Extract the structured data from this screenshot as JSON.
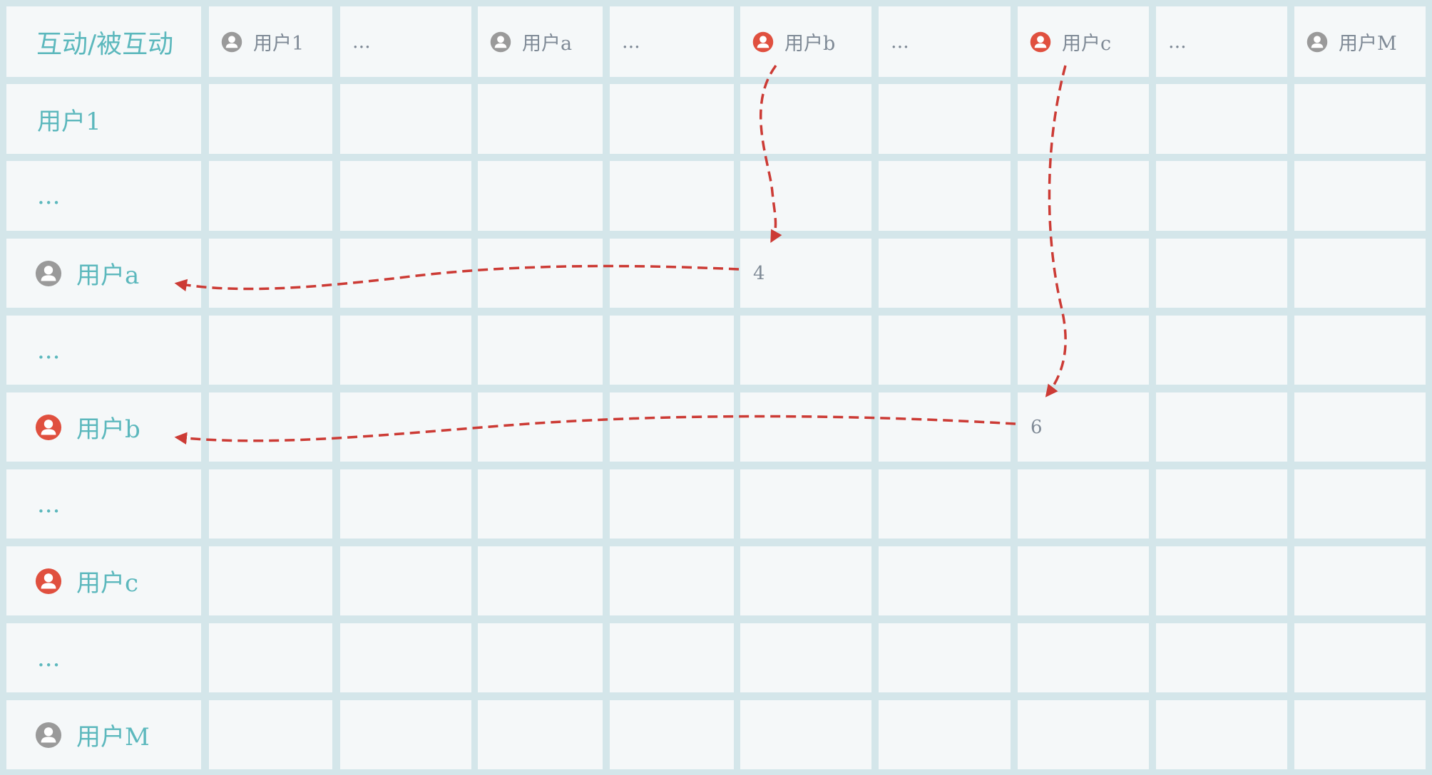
{
  "corner_label": "互动/被互动",
  "columns": [
    {
      "label": "用户1",
      "icon": "user-icon",
      "highlight": false
    },
    {
      "label": "...",
      "icon": null,
      "highlight": false
    },
    {
      "label": "用户a",
      "icon": "user-icon",
      "highlight": false
    },
    {
      "label": "...",
      "icon": null,
      "highlight": false
    },
    {
      "label": "用户b",
      "icon": "user-icon",
      "highlight": true
    },
    {
      "label": "...",
      "icon": null,
      "highlight": false
    },
    {
      "label": "用户c",
      "icon": "user-icon",
      "highlight": true
    },
    {
      "label": "...",
      "icon": null,
      "highlight": false
    },
    {
      "label": "用户M",
      "icon": "user-icon",
      "highlight": false
    }
  ],
  "rows": [
    {
      "label": "用户1",
      "icon": null,
      "highlight": false
    },
    {
      "label": "...",
      "icon": null,
      "highlight": false
    },
    {
      "label": "用户a",
      "icon": "user-icon",
      "highlight": false
    },
    {
      "label": "...",
      "icon": null,
      "highlight": false
    },
    {
      "label": "用户b",
      "icon": "user-icon",
      "highlight": true
    },
    {
      "label": "...",
      "icon": null,
      "highlight": false
    },
    {
      "label": "用户c",
      "icon": "user-icon",
      "highlight": true
    },
    {
      "label": "...",
      "icon": null,
      "highlight": false
    },
    {
      "label": "用户M",
      "icon": "user-icon",
      "highlight": false
    }
  ],
  "cell_values": [
    {
      "row": 2,
      "col": 4,
      "value": "4"
    },
    {
      "row": 4,
      "col": 6,
      "value": "6"
    }
  ],
  "colors": {
    "grid_line": "#d4e6ea",
    "cell_bg": "#f5f8f9",
    "label_teal": "#5cb8bd",
    "header_gray": "#7f8a96",
    "icon_gray": "#9a9a9a",
    "highlight_red": "#e0503f",
    "arrow_red": "#cc3b35"
  }
}
